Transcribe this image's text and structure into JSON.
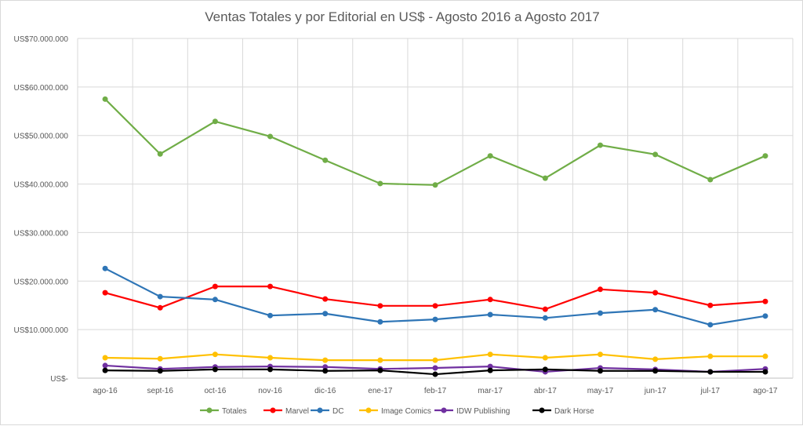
{
  "chart_data": {
    "type": "line",
    "title": "Ventas Totales y por Editorial en US$ - Agosto 2016 a Agosto 2017",
    "xlabel": "",
    "ylabel": "",
    "ylim": [
      0,
      70000000
    ],
    "yticks": [
      0,
      10000000,
      20000000,
      30000000,
      40000000,
      50000000,
      60000000,
      70000000
    ],
    "ytick_labels": [
      "US$-",
      "US$10.000.000",
      "US$20.000.000",
      "US$30.000.000",
      "US$40.000.000",
      "US$50.000.000",
      "US$60.000.000",
      "US$70.000.000"
    ],
    "grid": true,
    "legend_position": "bottom",
    "categories": [
      "ago-16",
      "sept-16",
      "oct-16",
      "nov-16",
      "dic-16",
      "ene-17",
      "feb-17",
      "mar-17",
      "abr-17",
      "may-17",
      "jun-17",
      "jul-17",
      "ago-17"
    ],
    "series": [
      {
        "name": "Totales",
        "color": "#70ad47",
        "values": [
          57500000,
          46200000,
          52900000,
          49800000,
          44900000,
          40100000,
          39800000,
          45800000,
          41200000,
          48000000,
          46100000,
          40900000,
          45800000
        ]
      },
      {
        "name": "Marvel",
        "color": "#ff0000",
        "values": [
          17600000,
          14500000,
          18900000,
          18900000,
          16300000,
          14900000,
          14900000,
          16200000,
          14200000,
          18300000,
          17600000,
          15000000,
          15800000
        ]
      },
      {
        "name": "DC",
        "color": "#2e75b6",
        "values": [
          22600000,
          16800000,
          16200000,
          12900000,
          13300000,
          11600000,
          12100000,
          13100000,
          12400000,
          13400000,
          14100000,
          11000000,
          12800000
        ]
      },
      {
        "name": "Image Comics",
        "color": "#ffc000",
        "values": [
          4200000,
          4000000,
          4900000,
          4200000,
          3700000,
          3700000,
          3700000,
          4900000,
          4200000,
          4900000,
          3900000,
          4500000,
          4500000
        ]
      },
      {
        "name": "IDW Publishing",
        "color": "#7030a0",
        "values": [
          2600000,
          1900000,
          2300000,
          2400000,
          2300000,
          1900000,
          2100000,
          2400000,
          1300000,
          2100000,
          1800000,
          1300000,
          1900000
        ]
      },
      {
        "name": "Dark Horse",
        "color": "#000000",
        "values": [
          1600000,
          1500000,
          1800000,
          1800000,
          1500000,
          1600000,
          800000,
          1600000,
          1800000,
          1500000,
          1500000,
          1300000,
          1300000
        ]
      }
    ]
  }
}
